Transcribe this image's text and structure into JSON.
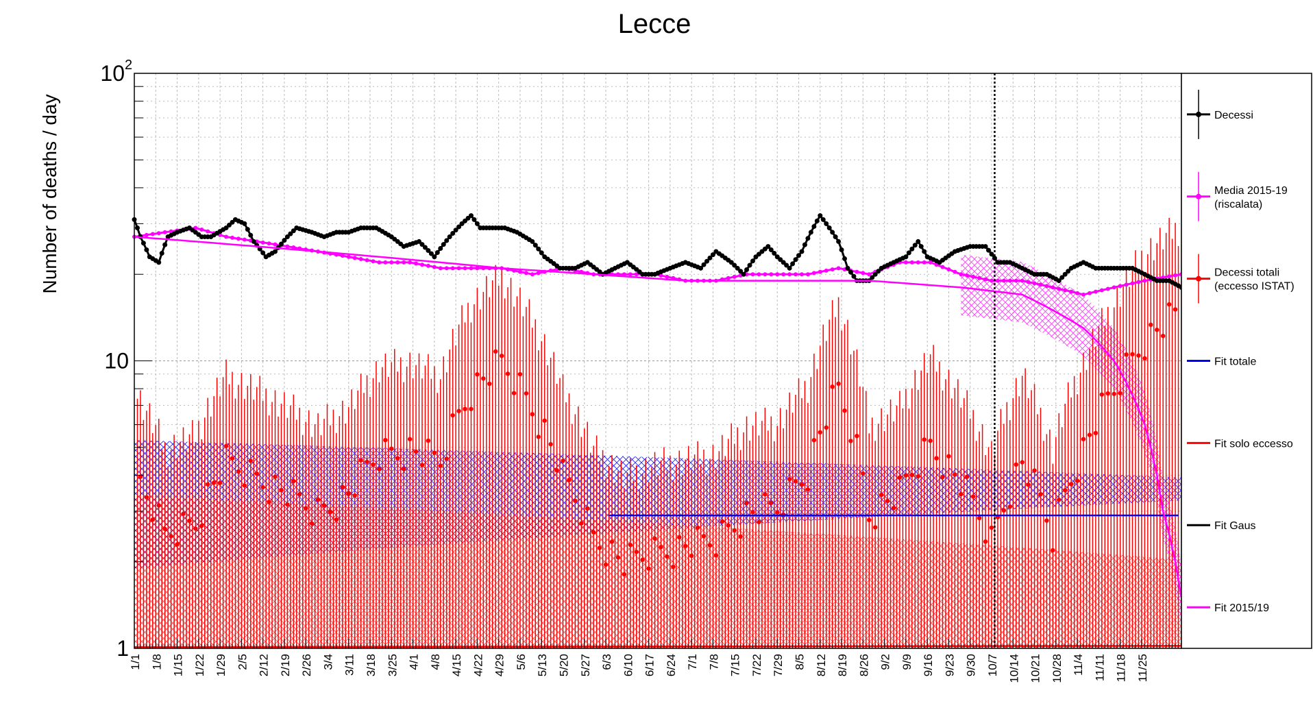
{
  "chart_data": {
    "type": "line",
    "title": "Lecce",
    "ylabel": "Number of deaths / day",
    "xlabel": "",
    "yscale": "log",
    "ylim": [
      1,
      100
    ],
    "y_ticks": [
      {
        "value": 1,
        "label": "1"
      },
      {
        "value": 10,
        "label": "10"
      },
      {
        "value": 100,
        "label": "10",
        "exp": "2"
      }
    ],
    "xlim_days": [
      0,
      342
    ],
    "x_tick_labels": [
      "1/1",
      "1/8",
      "1/15",
      "1/22",
      "1/29",
      "2/5",
      "2/12",
      "2/19",
      "2/26",
      "3/4",
      "3/11",
      "3/18",
      "3/25",
      "4/1",
      "4/8",
      "4/15",
      "4/22",
      "4/29",
      "5/6",
      "5/13",
      "5/20",
      "5/27",
      "6/3",
      "6/10",
      "6/17",
      "6/24",
      "7/1",
      "7/8",
      "7/15",
      "7/22",
      "7/29",
      "8/5",
      "8/12",
      "8/19",
      "8/26",
      "9/2",
      "9/9",
      "9/16",
      "9/23",
      "9/30",
      "10/7",
      "10/14",
      "10/21",
      "10/28",
      "11/4",
      "11/11",
      "11/18",
      "11/25"
    ],
    "grid": true,
    "legend_position": "right",
    "reference_line_day": 281,
    "colors": {
      "decessi": "#000000",
      "media": "#ff00ff",
      "eccesso": "#ff0000",
      "fit_totale": "#0000ff",
      "fit_eccesso": "#ff0000",
      "fit_gaus": "#000000",
      "fit_2015": "#ff00ff"
    },
    "series": [
      {
        "name": "Decessi",
        "key": "decessi",
        "anchors": [
          [
            0,
            31
          ],
          [
            2,
            27
          ],
          [
            5,
            23
          ],
          [
            8,
            22
          ],
          [
            11,
            27
          ],
          [
            14,
            28
          ],
          [
            18,
            29
          ],
          [
            22,
            27
          ],
          [
            25,
            27
          ],
          [
            30,
            29
          ],
          [
            33,
            31
          ],
          [
            36,
            30
          ],
          [
            39,
            26
          ],
          [
            43,
            23
          ],
          [
            46,
            24
          ],
          [
            50,
            27
          ],
          [
            53,
            29
          ],
          [
            58,
            28
          ],
          [
            62,
            27
          ],
          [
            66,
            28
          ],
          [
            70,
            28
          ],
          [
            74,
            29
          ],
          [
            79,
            29
          ],
          [
            84,
            27
          ],
          [
            88,
            25
          ],
          [
            93,
            26
          ],
          [
            98,
            23
          ],
          [
            103,
            27
          ],
          [
            107,
            30
          ],
          [
            110,
            32
          ],
          [
            113,
            29
          ],
          [
            117,
            29
          ],
          [
            121,
            29
          ],
          [
            125,
            28
          ],
          [
            130,
            26
          ],
          [
            134,
            23
          ],
          [
            139,
            21
          ],
          [
            144,
            21
          ],
          [
            148,
            22
          ],
          [
            153,
            20
          ],
          [
            157,
            21
          ],
          [
            161,
            22
          ],
          [
            166,
            20
          ],
          [
            170,
            20
          ],
          [
            175,
            21
          ],
          [
            180,
            22
          ],
          [
            185,
            21
          ],
          [
            190,
            24
          ],
          [
            195,
            22
          ],
          [
            199,
            20
          ],
          [
            203,
            23
          ],
          [
            207,
            25
          ],
          [
            210,
            23
          ],
          [
            214,
            21
          ],
          [
            218,
            24
          ],
          [
            221,
            28
          ],
          [
            224,
            32
          ],
          [
            227,
            29
          ],
          [
            230,
            26
          ],
          [
            233,
            21
          ],
          [
            236,
            19
          ],
          [
            240,
            19
          ],
          [
            244,
            21
          ],
          [
            248,
            22
          ],
          [
            252,
            23
          ],
          [
            256,
            26
          ],
          [
            259,
            23
          ],
          [
            263,
            22
          ],
          [
            268,
            24
          ],
          [
            273,
            25
          ],
          [
            278,
            25
          ],
          [
            282,
            22
          ],
          [
            286,
            22
          ],
          [
            290,
            21
          ],
          [
            294,
            20
          ],
          [
            298,
            20
          ],
          [
            302,
            19
          ],
          [
            306,
            21
          ],
          [
            310,
            22
          ],
          [
            314,
            21
          ],
          [
            318,
            21
          ],
          [
            322,
            21
          ],
          [
            326,
            21
          ],
          [
            330,
            20
          ],
          [
            334,
            19
          ],
          [
            338,
            19
          ],
          [
            342,
            18
          ]
        ]
      },
      {
        "name": "Media 2015-19 (riscalata)",
        "key": "media",
        "anchors": [
          [
            0,
            27
          ],
          [
            10,
            28
          ],
          [
            20,
            29
          ],
          [
            30,
            27
          ],
          [
            40,
            26
          ],
          [
            50,
            25
          ],
          [
            60,
            24
          ],
          [
            70,
            23
          ],
          [
            80,
            22
          ],
          [
            90,
            22
          ],
          [
            100,
            21
          ],
          [
            110,
            21
          ],
          [
            120,
            21
          ],
          [
            130,
            20
          ],
          [
            140,
            21
          ],
          [
            150,
            20
          ],
          [
            160,
            20
          ],
          [
            170,
            20
          ],
          [
            180,
            19
          ],
          [
            190,
            19
          ],
          [
            200,
            20
          ],
          [
            210,
            20
          ],
          [
            220,
            20
          ],
          [
            230,
            21
          ],
          [
            240,
            20
          ],
          [
            250,
            22
          ],
          [
            260,
            22
          ],
          [
            270,
            20
          ],
          [
            280,
            19
          ],
          [
            290,
            19
          ],
          [
            300,
            18
          ],
          [
            310,
            17
          ],
          [
            320,
            18
          ],
          [
            330,
            19
          ],
          [
            342,
            20
          ]
        ]
      },
      {
        "name": "Decessi totali (eccesso ISTAT)",
        "key": "eccesso",
        "anchors": [
          [
            0,
            4
          ],
          [
            10,
            2.5
          ],
          [
            20,
            2.8
          ],
          [
            30,
            4.5
          ],
          [
            40,
            4
          ],
          [
            50,
            3.5
          ],
          [
            60,
            3
          ],
          [
            70,
            3.5
          ],
          [
            80,
            4.8
          ],
          [
            90,
            5
          ],
          [
            100,
            4.5
          ],
          [
            110,
            8
          ],
          [
            120,
            10
          ],
          [
            130,
            7
          ],
          [
            140,
            4
          ],
          [
            150,
            2.5
          ],
          [
            160,
            2
          ],
          [
            170,
            2.2
          ],
          [
            180,
            2.3
          ],
          [
            190,
            2.4
          ],
          [
            200,
            3
          ],
          [
            210,
            3.1
          ],
          [
            220,
            4.2
          ],
          [
            230,
            8
          ],
          [
            240,
            3
          ],
          [
            250,
            3.5
          ],
          [
            260,
            5.2
          ],
          [
            270,
            3.8
          ],
          [
            280,
            2.4
          ],
          [
            290,
            4.5
          ],
          [
            300,
            2.5
          ],
          [
            310,
            5
          ],
          [
            320,
            8
          ],
          [
            330,
            12
          ],
          [
            342,
            15
          ]
        ]
      },
      {
        "name": "Fit totale",
        "key": "fit_totale",
        "anchors": [
          [
            155,
            2.9
          ],
          [
            342,
            2.9
          ]
        ]
      },
      {
        "name": "Fit solo eccesso",
        "key": "fit_eccesso",
        "anchors": [
          [
            0,
            1
          ],
          [
            342,
            1
          ]
        ]
      },
      {
        "name": "Fit Gaus",
        "key": "fit_gaus",
        "anchors": []
      },
      {
        "name": "Fit 2015/19",
        "key": "fit_2015",
        "anchors": [
          [
            0,
            27
          ],
          [
            60,
            24
          ],
          [
            120,
            21
          ],
          [
            180,
            19
          ],
          [
            240,
            19
          ],
          [
            270,
            18
          ],
          [
            290,
            17
          ],
          [
            300,
            15
          ],
          [
            310,
            13
          ],
          [
            320,
            10
          ],
          [
            330,
            6
          ],
          [
            336,
            3
          ],
          [
            342,
            1.5
          ]
        ]
      }
    ]
  }
}
